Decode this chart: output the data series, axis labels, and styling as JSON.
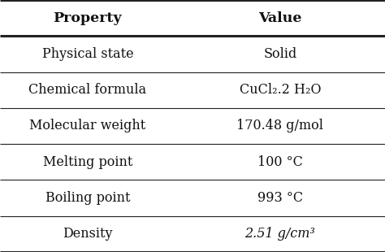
{
  "headers": [
    "Property",
    "Value"
  ],
  "rows": [
    [
      "Physical state",
      "Solid"
    ],
    [
      "Chemical formula",
      "CuCl₂.2 H₂O"
    ],
    [
      "Molecular weight",
      "170.48 g/mol"
    ],
    [
      "Melting point",
      "100 °C"
    ],
    [
      "Boiling point",
      "993 °C"
    ],
    [
      "Density",
      "2.51 g/cm³"
    ]
  ],
  "line_color": "#222222",
  "text_color": "#111111",
  "bg_color": "#f0f0f0",
  "header_fontsize": 12.5,
  "row_fontsize": 11.5,
  "col_split": 0.455,
  "thick_lw": 2.2,
  "thin_lw": 0.8
}
